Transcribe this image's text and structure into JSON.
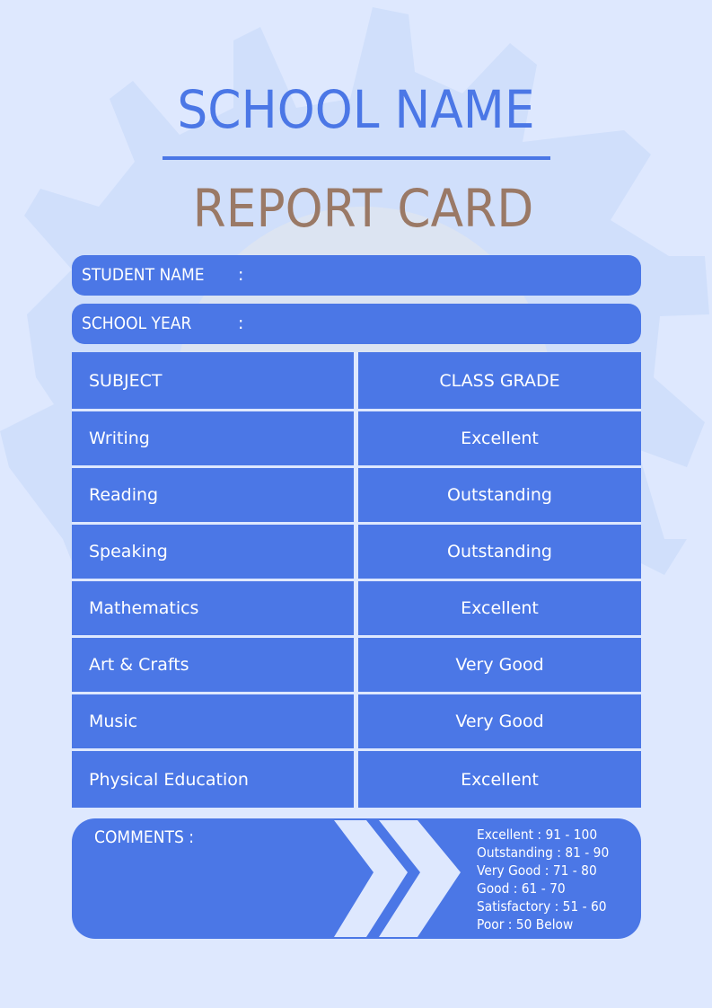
{
  "colors": {
    "background": "#dee8fe",
    "accent": "#4b77e6",
    "title_brown": "#9a7966",
    "gear": "#d0dffb"
  },
  "header": {
    "school_name": "SCHOOL NAME",
    "report_title": "REPORT CARD"
  },
  "fields": [
    {
      "label": "STUDENT NAME",
      "colon": ":",
      "value": ""
    },
    {
      "label": "SCHOOL YEAR",
      "colon": ":",
      "value": ""
    }
  ],
  "table": {
    "headers": [
      "SUBJECT",
      "CLASS GRADE"
    ],
    "rows": [
      [
        "Writing",
        "Excellent"
      ],
      [
        "Reading",
        "Outstanding"
      ],
      [
        "Speaking",
        "Outstanding"
      ],
      [
        "Mathematics",
        "Excellent"
      ],
      [
        "Art & Crafts",
        "Very Good"
      ],
      [
        "Music",
        "Very Good"
      ],
      [
        "Physical Education",
        "Excellent"
      ]
    ]
  },
  "comments": {
    "label": "COMMENTS :",
    "scale": [
      "Excellent : 91 - 100",
      "Outstanding : 81 - 90",
      "Very Good : 71 - 80",
      "Good : 61 - 70",
      "Satisfactory : 51 - 60",
      "Poor : 50 Below"
    ],
    "decoration_icon": "double-chevron-right-icon"
  }
}
